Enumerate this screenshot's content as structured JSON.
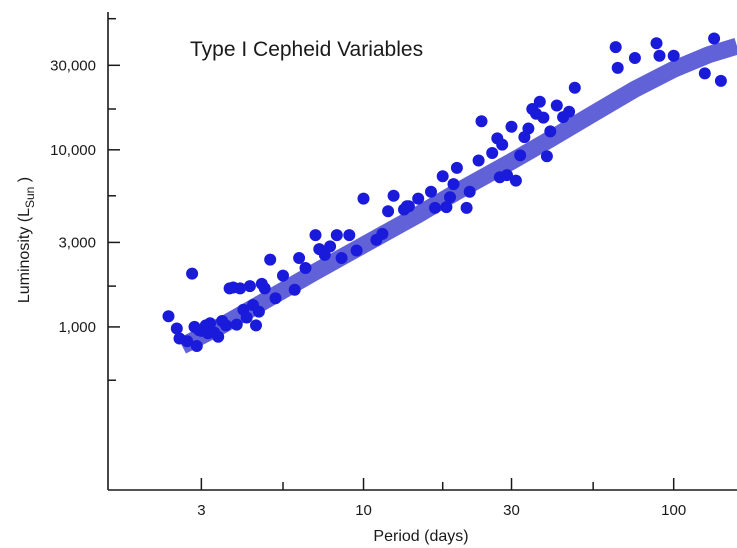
{
  "chart_data": {
    "type": "scatter",
    "title": "Type I Cepheid Variables",
    "xlabel": "Period (days)",
    "ylabel_main": "Luminosity (L",
    "ylabel_sub": "Sun",
    "ylabel_end": " )",
    "x_scale": "log",
    "y_scale": "log",
    "xlim": [
      1.5,
      160
    ],
    "ylim": [
      120,
      60000
    ],
    "x_ticks": [
      {
        "value": 3,
        "label": "3"
      },
      {
        "value": 10,
        "label": "10"
      },
      {
        "value": 30,
        "label": "30"
      },
      {
        "value": 100,
        "label": "100"
      }
    ],
    "x_minor_ticks": [
      5.5,
      18,
      55
    ],
    "y_ticks": [
      {
        "value": 1000,
        "label": "1,000"
      },
      {
        "value": 3000,
        "label": "3,000"
      },
      {
        "value": 10000,
        "label": "10,000"
      },
      {
        "value": 30000,
        "label": "30,000"
      }
    ],
    "y_minor_ticks": [
      500,
      1700,
      5500,
      17000,
      55000
    ],
    "grid": false,
    "colors": {
      "points": "#1a1adb",
      "trend": "#5a5ad6",
      "axis": "#1a1a1a"
    },
    "trend_line": {
      "x": [
        2.6,
        3.5,
        5,
        7,
        10,
        15,
        20,
        30,
        40,
        55,
        75,
        100,
        130,
        160
      ],
      "y": [
        780,
        1020,
        1460,
        2050,
        2900,
        4300,
        5800,
        8600,
        11500,
        16000,
        22000,
        28500,
        34500,
        38500
      ]
    },
    "points": {
      "x": [
        2.35,
        2.5,
        2.55,
        2.7,
        2.8,
        2.85,
        2.9,
        2.95,
        3.0,
        3.1,
        3.15,
        3.2,
        3.3,
        3.4,
        3.5,
        3.6,
        3.7,
        3.8,
        3.9,
        4.0,
        4.1,
        4.2,
        4.3,
        4.4,
        4.5,
        4.6,
        4.7,
        4.8,
        5.0,
        5.2,
        5.5,
        6.0,
        6.2,
        6.5,
        7.0,
        7.2,
        7.5,
        7.8,
        8.2,
        8.5,
        9.0,
        9.5,
        10.0,
        11.0,
        11.5,
        12.0,
        12.5,
        13.5,
        13.8,
        14.0,
        15.0,
        16.5,
        17.0,
        18.0,
        18.5,
        19.0,
        19.5,
        20.0,
        21.5,
        22.0,
        23.5,
        24.0,
        26.0,
        27.0,
        27.5,
        28.0,
        29.0,
        30.0,
        31.0,
        32.0,
        33.0,
        34.0,
        35.0,
        36.0,
        37.0,
        38.0,
        39.0,
        40.0,
        42.0,
        44.0,
        46.0,
        48.0,
        65.0,
        66.0,
        75.0,
        88.0,
        90.0,
        100.0,
        126.0,
        135.0,
        142.0
      ],
      "y": [
        1150,
        980,
        860,
        830,
        2000,
        1000,
        780,
        960,
        950,
        1020,
        920,
        1050,
        930,
        880,
        1080,
        1020,
        1650,
        1670,
        1030,
        1650,
        1250,
        1130,
        1700,
        1330,
        1020,
        1220,
        1750,
        1650,
        2400,
        1450,
        1950,
        1620,
        2450,
        2150,
        3300,
        2750,
        2550,
        2850,
        3300,
        2450,
        3300,
        2700,
        5300,
        3100,
        3350,
        4500,
        5500,
        4600,
        4800,
        4800,
        5300,
        5800,
        4700,
        7100,
        4750,
        5400,
        6400,
        7900,
        4700,
        5800,
        8700,
        14500,
        9600,
        11600,
        7000,
        10700,
        7200,
        13500,
        6700,
        9300,
        11800,
        13200,
        17000,
        16000,
        18700,
        15200,
        9200,
        12700,
        17800,
        15300,
        16400,
        22400,
        38000,
        29000,
        33000,
        40000,
        34000,
        34000,
        27000,
        42500,
        24500
      ]
    }
  }
}
